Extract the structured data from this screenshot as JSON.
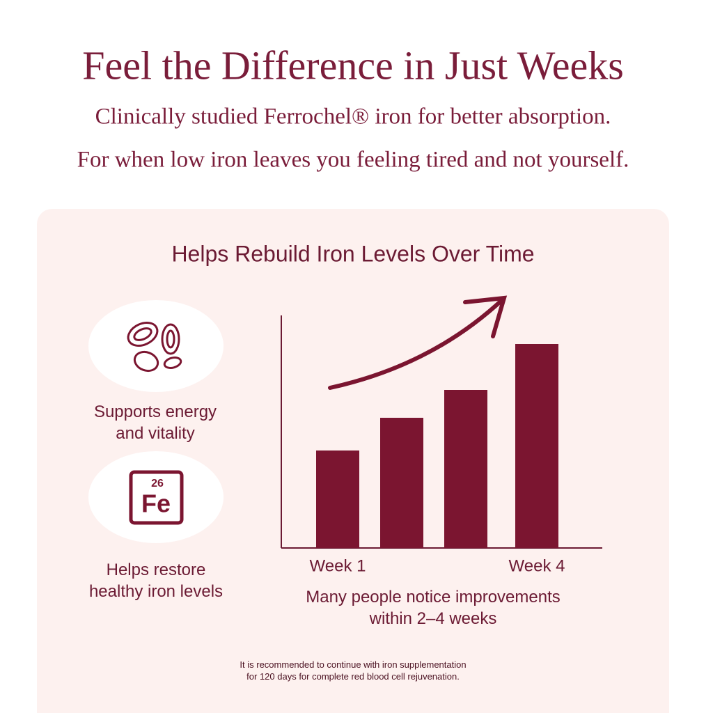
{
  "header": {
    "title": "Feel the Difference in Just Weeks",
    "subtitles": [
      "Clinically studied Ferrochel® iron for better absorption.",
      "For when low iron leaves you feeling tired and not yourself."
    ]
  },
  "panel": {
    "heading": "Helps Rebuild Iron Levels Over Time",
    "features": [
      {
        "lines": [
          "Supports energy",
          "and vitality"
        ]
      },
      {
        "icon": {
          "number": "26",
          "symbol": "Fe"
        },
        "lines": [
          "Helps restore",
          "healthy iron levels"
        ]
      }
    ],
    "footnote": [
      "It is recommended to continue with iron supplementation",
      "for 120 days for complete red blood cell rejuvenation."
    ]
  },
  "chart_data": {
    "type": "bar",
    "categories": [
      "Week 1",
      null,
      null,
      "Week 4"
    ],
    "values": [
      140,
      187,
      227,
      293
    ],
    "color": "#7b1530",
    "caption": [
      "Many people notice improvements",
      "within 2–4 weeks"
    ]
  }
}
